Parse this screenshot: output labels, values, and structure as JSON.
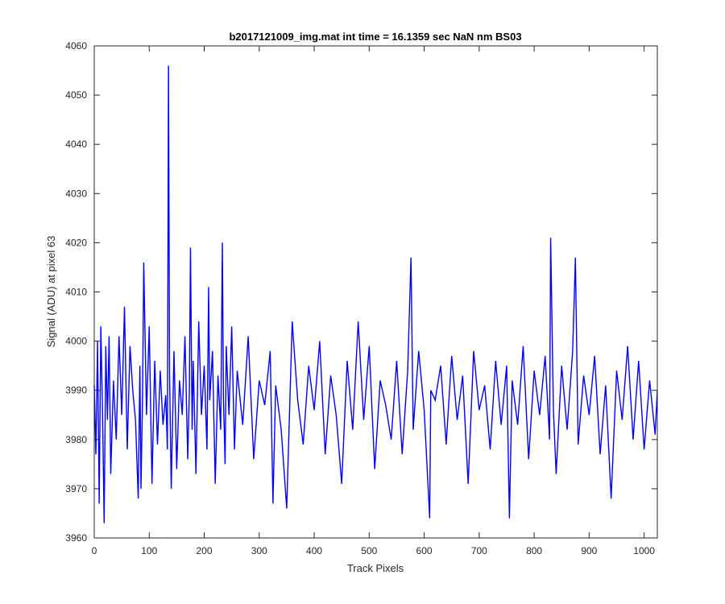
{
  "chart_data": {
    "type": "line",
    "title": "b2017121009_img.mat int time = 16.1359 sec  NaN nm BS03",
    "xlabel": "Track Pixels",
    "ylabel": "Signal (ADU) at pixel 63",
    "xlim": [
      0,
      1024
    ],
    "ylim": [
      3960,
      4060
    ],
    "xticks": [
      0,
      100,
      200,
      300,
      400,
      500,
      600,
      700,
      800,
      900,
      1000
    ],
    "yticks": [
      3960,
      3970,
      3980,
      3990,
      4000,
      4010,
      4020,
      4030,
      4040,
      4050,
      4060
    ],
    "grid": false,
    "series": [
      {
        "color": "#0000ff",
        "x": [
          0,
          3,
          6,
          9,
          12,
          15,
          18,
          21,
          24,
          27,
          30,
          35,
          40,
          45,
          50,
          55,
          60,
          65,
          70,
          75,
          80,
          83,
          85,
          88,
          90,
          95,
          100,
          105,
          110,
          115,
          120,
          125,
          130,
          133,
          135,
          137,
          140,
          145,
          150,
          155,
          160,
          165,
          170,
          173,
          175,
          178,
          180,
          185,
          190,
          195,
          200,
          205,
          208,
          210,
          215,
          220,
          225,
          230,
          233,
          235,
          238,
          240,
          245,
          250,
          255,
          260,
          270,
          280,
          290,
          300,
          310,
          320,
          325,
          330,
          340,
          350,
          360,
          370,
          380,
          390,
          400,
          410,
          420,
          430,
          440,
          450,
          460,
          470,
          480,
          490,
          500,
          510,
          520,
          530,
          540,
          550,
          560,
          570,
          576,
          580,
          590,
          600,
          610,
          612,
          620,
          630,
          640,
          650,
          660,
          670,
          680,
          690,
          700,
          710,
          720,
          730,
          740,
          750,
          755,
          760,
          770,
          780,
          790,
          800,
          810,
          820,
          828,
          830,
          835,
          840,
          850,
          860,
          870,
          875,
          880,
          890,
          900,
          910,
          920,
          930,
          940,
          950,
          960,
          970,
          980,
          990,
          1000,
          1010,
          1020,
          1024
        ],
        "y": [
          3991,
          3977,
          4000,
          3967,
          4003,
          3986,
          3963,
          3999,
          3984,
          4001,
          3973,
          3992,
          3980,
          4001,
          3985,
          4007,
          3978,
          3999,
          3990,
          3984,
          3968,
          3995,
          3970,
          3990,
          4016,
          3985,
          4003,
          3971,
          3996,
          3979,
          3994,
          3983,
          3989,
          3978,
          4056,
          3993,
          3970,
          3998,
          3974,
          3992,
          3985,
          4001,
          3976,
          3990,
          4019,
          3982,
          3996,
          3973,
          4004,
          3985,
          3995,
          3978,
          4011,
          3988,
          3998,
          3971,
          3993,
          3982,
          4020,
          3988,
          3975,
          3999,
          3985,
          4003,
          3978,
          3994,
          3983,
          4001,
          3976,
          3992,
          3987,
          3998,
          3967,
          3991,
          3982,
          3966,
          4004,
          3988,
          3979,
          3995,
          3986,
          4000,
          3977,
          3993,
          3985,
          3971,
          3996,
          3982,
          4004,
          3984,
          3999,
          3974,
          3992,
          3987,
          3980,
          3996,
          3977,
          3994,
          4017,
          3982,
          3998,
          3986,
          3964,
          3990,
          3988,
          3995,
          3979,
          3997,
          3984,
          3993,
          3971,
          3998,
          3986,
          3991,
          3978,
          3996,
          3983,
          3995,
          3964,
          3992,
          3983,
          3999,
          3976,
          3994,
          3985,
          3997,
          3980,
          4021,
          3986,
          3973,
          3995,
          3982,
          3998,
          4017,
          3979,
          3993,
          3985,
          3997,
          3977,
          3991,
          3968,
          3994,
          3984,
          3999,
          3980,
          3996,
          3978,
          3992,
          3981,
          3990
        ]
      }
    ]
  }
}
